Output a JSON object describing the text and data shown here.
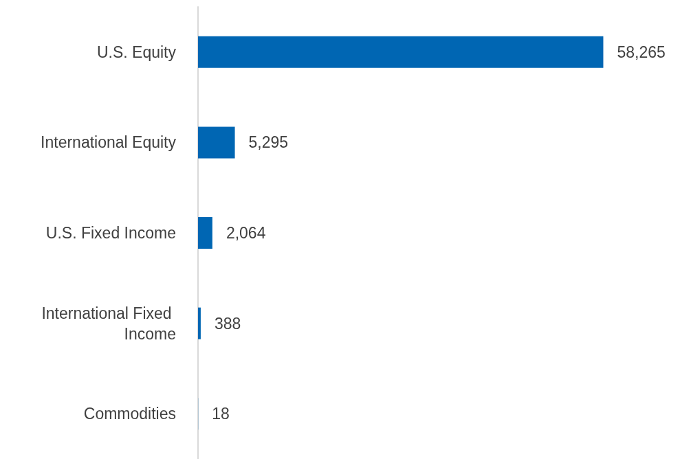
{
  "chart_data": {
    "type": "bar",
    "orientation": "horizontal",
    "categories": [
      "U.S. Equity",
      "International Equity",
      "U.S. Fixed Income",
      "International Fixed Income",
      "Commodities"
    ],
    "values": [
      58265,
      5295,
      2064,
      388,
      18
    ],
    "value_labels": [
      "58,265",
      "5,295",
      "2,064",
      "388",
      "18"
    ],
    "color": "#0066b3"
  }
}
